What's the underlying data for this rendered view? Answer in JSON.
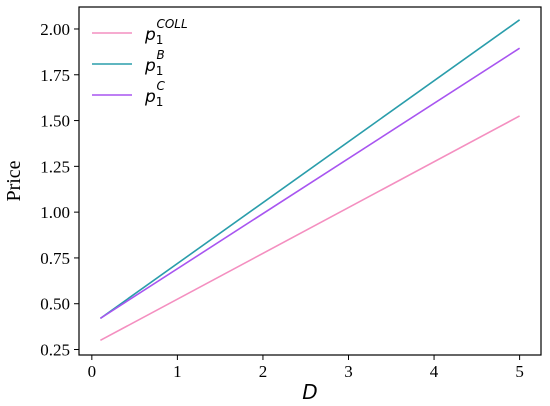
{
  "chart_data": {
    "type": "line",
    "xlabel": "D",
    "ylabel": "Price",
    "xlim": [
      -0.15,
      5.25
    ],
    "ylim": [
      0.22,
      2.12
    ],
    "xticks": [
      0,
      1,
      2,
      3,
      4,
      5
    ],
    "xtick_labels": [
      "0",
      "1",
      "2",
      "3",
      "4",
      "5"
    ],
    "yticks": [
      0.25,
      0.5,
      0.75,
      1.0,
      1.25,
      1.5,
      1.75,
      2.0
    ],
    "ytick_labels": [
      "0.25",
      "0.50",
      "0.75",
      "1.00",
      "1.25",
      "1.50",
      "1.75",
      "2.00"
    ],
    "grid": false,
    "legend_position": "top-left",
    "series": [
      {
        "name_base": "p",
        "name_sub": "1",
        "name_sup": "COLL",
        "color": "#f48fc0",
        "x": [
          0.1,
          5.0
        ],
        "y": [
          0.3,
          1.525
        ]
      },
      {
        "name_base": "p",
        "name_sub": "1",
        "name_sup": "B",
        "color": "#2a9dab",
        "x": [
          0.1,
          5.0
        ],
        "y": [
          0.42,
          2.05
        ]
      },
      {
        "name_base": "p",
        "name_sub": "1",
        "name_sup": "C",
        "color": "#a855f0",
        "x": [
          0.1,
          5.0
        ],
        "y": [
          0.42,
          1.895
        ]
      }
    ]
  }
}
